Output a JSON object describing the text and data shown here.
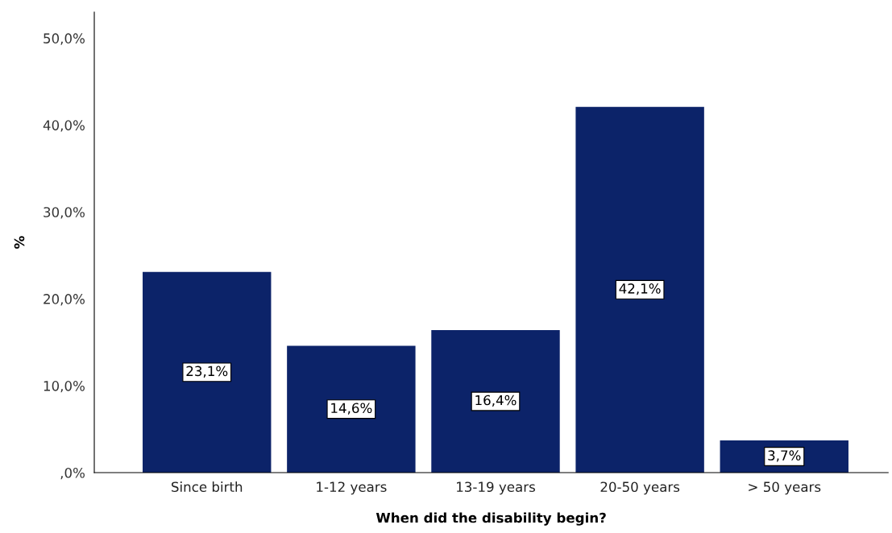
{
  "chart_data": {
    "type": "bar",
    "xlabel": "When did the disability begin?",
    "ylabel": "%",
    "categories": [
      "Since birth",
      "1-12 years",
      "13-19 years",
      "20-50 years",
      "> 50 years"
    ],
    "values": [
      23.1,
      14.6,
      16.4,
      42.1,
      3.7
    ],
    "value_labels": [
      "23,1%",
      "14,6%",
      "16,4%",
      "42,1%",
      "3,7%"
    ],
    "color": "#0c2369",
    "ylim": [
      0,
      53
    ],
    "yticks": [
      {
        "value": 0,
        "label": ",0%"
      },
      {
        "value": 10,
        "label": "10,0%"
      },
      {
        "value": 20,
        "label": "20,0%"
      },
      {
        "value": 30,
        "label": "30,0%"
      },
      {
        "value": 40,
        "label": "40,0%"
      },
      {
        "value": 50,
        "label": "50,0%"
      }
    ],
    "grid": false,
    "legend": false
  }
}
